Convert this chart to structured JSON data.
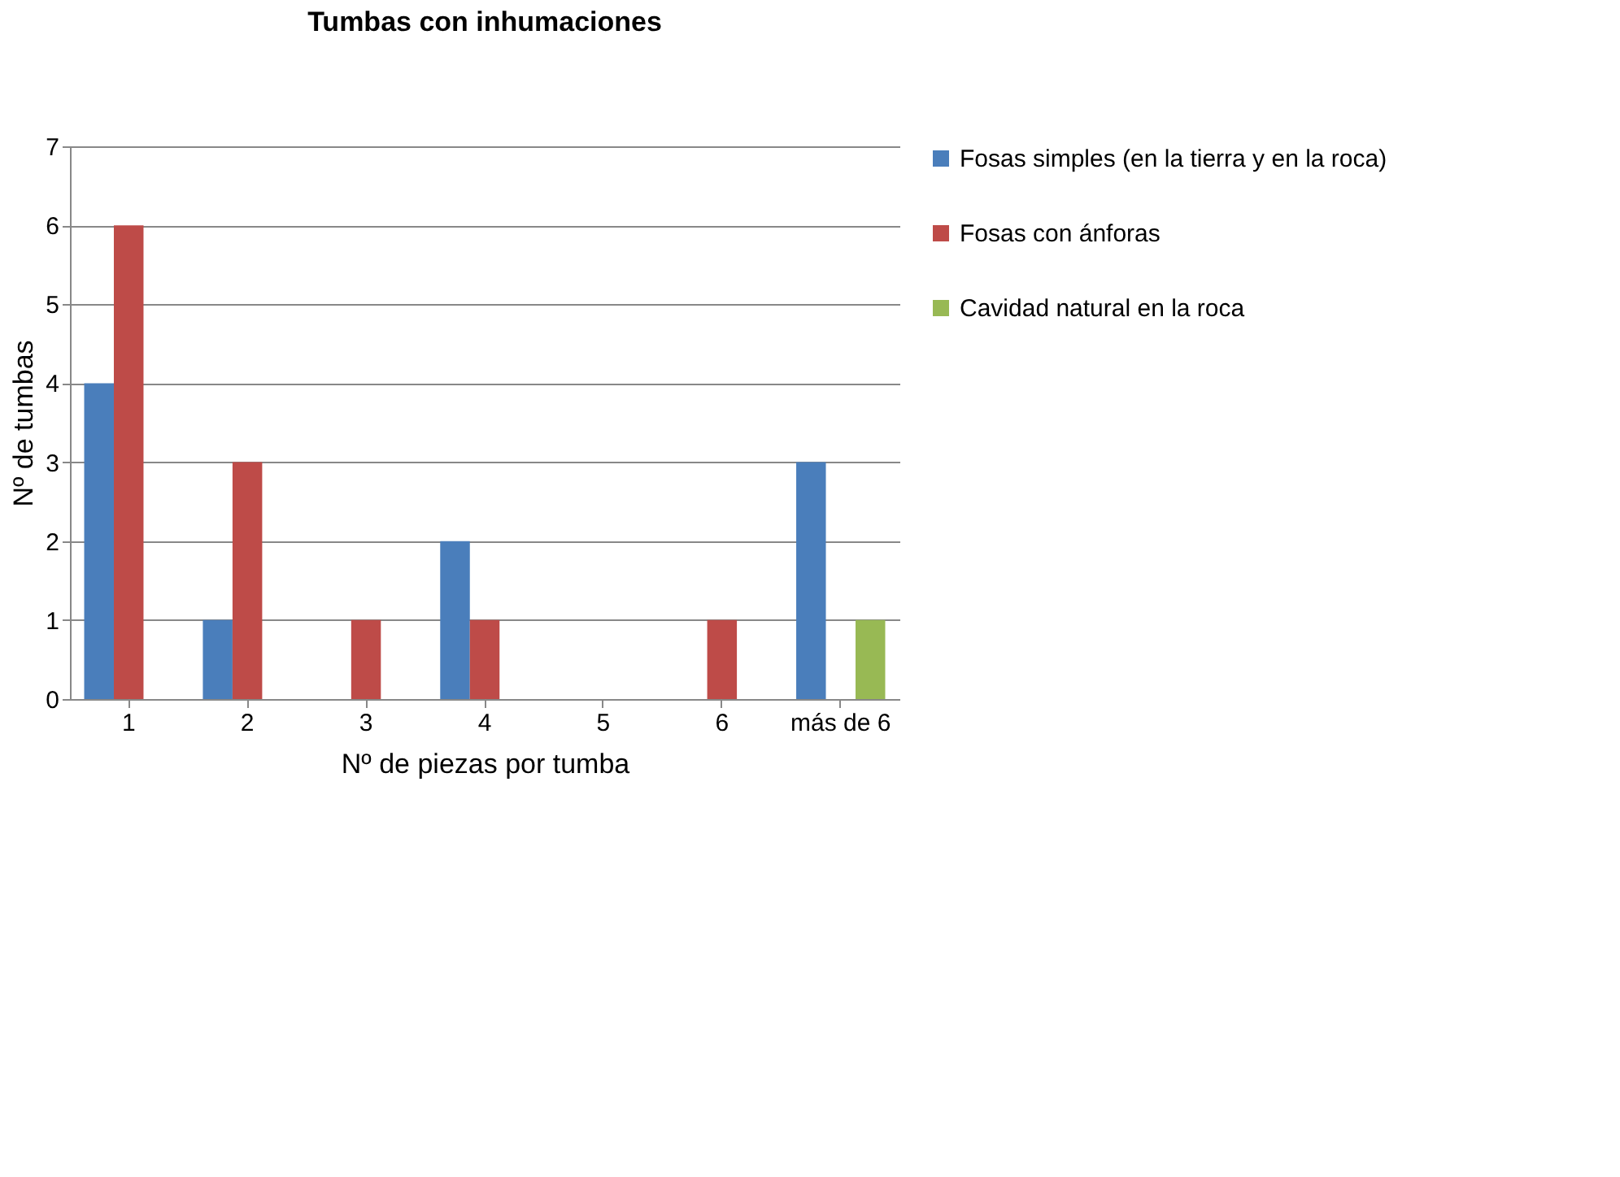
{
  "chart_data": {
    "type": "bar",
    "title": "Tumbas con inhumaciones",
    "xlabel": "Nº de piezas por tumba",
    "ylabel": "Nº de tumbas",
    "categories": [
      "1",
      "2",
      "3",
      "4",
      "5",
      "6",
      "más de 6"
    ],
    "series": [
      {
        "name": "Fosas simples (en la tierra y en la roca)",
        "color": "#4a7ebb",
        "values": [
          4,
          1,
          0,
          2,
          0,
          0,
          3
        ]
      },
      {
        "name": "Fosas con ánforas",
        "color": "#be4b48",
        "values": [
          6,
          3,
          1,
          1,
          0,
          1,
          0
        ]
      },
      {
        "name": "Cavidad natural en la roca",
        "color": "#98b954",
        "values": [
          0,
          0,
          0,
          0,
          0,
          0,
          1
        ]
      }
    ],
    "ylim": [
      0,
      7
    ],
    "yticks": [
      0,
      1,
      2,
      3,
      4,
      5,
      6,
      7
    ],
    "grid": "y",
    "legend": "right"
  }
}
